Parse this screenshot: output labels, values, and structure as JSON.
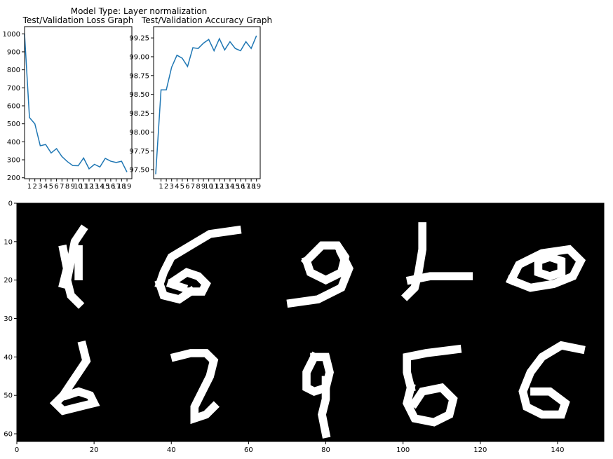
{
  "suptitle": "Model Type: Layer normalization",
  "chart_data": [
    {
      "type": "line",
      "title": "Test/Validation Loss Graph",
      "xlabel": "",
      "ylabel": "",
      "x": [
        1,
        2,
        3,
        4,
        5,
        6,
        7,
        8,
        9,
        10,
        11,
        12,
        13,
        14,
        15,
        16,
        17,
        18,
        19
      ],
      "xlim": [
        0.1,
        19.9
      ],
      "ylim": [
        195,
        1040
      ],
      "yticks": [
        200,
        300,
        400,
        500,
        600,
        700,
        800,
        900,
        1000
      ],
      "series": [
        {
          "color": "#1f77b4",
          "x": [
            0.1,
            1,
            2,
            3,
            4,
            5,
            6,
            7,
            8,
            9,
            10,
            11,
            12,
            13,
            14,
            15,
            16,
            17,
            18,
            19
          ],
          "values": [
            1000,
            535,
            500,
            378,
            385,
            338,
            362,
            318,
            290,
            268,
            267,
            310,
            250,
            275,
            260,
            308,
            292,
            285,
            292,
            232
          ]
        }
      ]
    },
    {
      "type": "line",
      "title": "Test/Validation Accuracy Graph",
      "xlabel": "",
      "ylabel": "",
      "x": [
        1,
        2,
        3,
        4,
        5,
        6,
        7,
        8,
        9,
        10,
        11,
        12,
        13,
        14,
        15,
        16,
        17,
        18,
        19
      ],
      "xlim": [
        -0.4,
        19.7
      ],
      "ylim": [
        97.38,
        99.4
      ],
      "yticks": [
        97.5,
        97.75,
        98.0,
        98.25,
        98.5,
        98.75,
        99.0,
        99.25
      ],
      "ytick_labels": [
        "97.50",
        "97.75",
        "98.00",
        "98.25",
        "98.50",
        "98.75",
        "99.00",
        "99.25"
      ],
      "series": [
        {
          "color": "#1f77b4",
          "x": [
            0,
            1,
            2,
            3,
            4,
            5,
            6,
            7,
            8,
            9,
            10,
            11,
            12,
            13,
            14,
            15,
            16,
            17,
            18,
            19
          ],
          "values": [
            97.44,
            98.56,
            98.56,
            98.86,
            99.02,
            98.98,
            98.87,
            99.12,
            99.11,
            99.18,
            99.23,
            99.08,
            99.24,
            99.09,
            99.2,
            99.11,
            99.08,
            99.2,
            99.11,
            99.28
          ]
        }
      ]
    },
    {
      "type": "heatmap",
      "title": "",
      "colormap": "gray",
      "xlim": [
        0,
        152
      ],
      "ylim": [
        62,
        0
      ],
      "xticks": [
        0,
        20,
        40,
        60,
        80,
        100,
        120,
        140
      ],
      "yticks": [
        0,
        10,
        20,
        30,
        40,
        50,
        60
      ],
      "grid_rows": 2,
      "grid_cols": 5,
      "digits": [
        {
          "row": 0,
          "col": 0,
          "strokes": [
            [
              [
                17,
                7
              ],
              [
                15,
                10
              ],
              [
                14,
                15
              ],
              [
                13,
                20
              ],
              [
                14,
                24
              ],
              [
                16,
                26
              ]
            ],
            [
              [
                12,
                12
              ],
              [
                13,
                17
              ],
              [
                12,
                21
              ]
            ],
            [
              [
                16,
                12
              ],
              [
                16,
                19
              ]
            ]
          ]
        },
        {
          "row": 0,
          "col": 1,
          "strokes": [
            [
              [
                57,
                7
              ],
              [
                50,
                8
              ],
              [
                45,
                11
              ],
              [
                40,
                14
              ],
              [
                38,
                18
              ],
              [
                37,
                21
              ]
            ],
            [
              [
                37,
                21
              ],
              [
                38,
                24
              ],
              [
                42,
                25
              ],
              [
                45,
                23
              ]
            ],
            [
              [
                41,
                20
              ],
              [
                44,
                18
              ],
              [
                47,
                19
              ],
              [
                49,
                21
              ],
              [
                48,
                23
              ],
              [
                45,
                23
              ]
            ],
            [
              [
                40,
                21
              ],
              [
                43,
                22
              ]
            ]
          ]
        },
        {
          "row": 0,
          "col": 2,
          "strokes": [
            [
              [
                75,
                15
              ],
              [
                79,
                11
              ],
              [
                83,
                11
              ],
              [
                85,
                14
              ],
              [
                84,
                18
              ],
              [
                80,
                20
              ],
              [
                76,
                18
              ],
              [
                75,
                15
              ]
            ],
            [
              [
                84,
                13
              ],
              [
                86,
                17
              ],
              [
                84,
                22
              ],
              [
                78,
                25
              ],
              [
                71,
                26
              ]
            ]
          ]
        },
        {
          "row": 0,
          "col": 3,
          "strokes": [
            [
              [
                105,
                6
              ],
              [
                105,
                12
              ],
              [
                104,
                18
              ],
              [
                103,
                22
              ],
              [
                101,
                24
              ]
            ],
            [
              [
                102,
                20
              ],
              [
                107,
                19
              ],
              [
                112,
                19
              ],
              [
                117,
                19
              ]
            ]
          ]
        },
        {
          "row": 0,
          "col": 4,
          "strokes": [
            [
              [
                128,
                20
              ],
              [
                130,
                16
              ],
              [
                136,
                13
              ],
              [
                143,
                12
              ],
              [
                146,
                15
              ],
              [
                144,
                19
              ],
              [
                139,
                21
              ],
              [
                133,
                22
              ],
              [
                128,
                20
              ]
            ],
            [
              [
                135,
                15
              ],
              [
                138,
                14
              ],
              [
                141,
                15
              ],
              [
                141,
                18
              ],
              [
                138,
                19
              ],
              [
                135,
                18
              ],
              [
                135,
                15
              ]
            ]
          ]
        },
        {
          "row": 1,
          "col": 0,
          "strokes": [
            [
              [
                17,
                37
              ],
              [
                18,
                41
              ],
              [
                16,
                44
              ],
              [
                14,
                47
              ],
              [
                12,
                50
              ],
              [
                10,
                52
              ],
              [
                12,
                54
              ],
              [
                16,
                53
              ],
              [
                20,
                52
              ],
              [
                19,
                50
              ],
              [
                16,
                49
              ],
              [
                13,
                50
              ]
            ]
          ]
        },
        {
          "row": 1,
          "col": 1,
          "strokes": [
            [
              [
                41,
                40
              ],
              [
                45,
                39
              ],
              [
                49,
                39
              ],
              [
                51,
                41
              ],
              [
                50,
                45
              ],
              [
                48,
                49
              ],
              [
                46,
                53
              ],
              [
                46,
                56
              ],
              [
                49,
                55
              ],
              [
                51,
                53
              ]
            ]
          ]
        },
        {
          "row": 1,
          "col": 2,
          "strokes": [
            [
              [
                77,
                40
              ],
              [
                75,
                44
              ],
              [
                75,
                48
              ],
              [
                77,
                49
              ],
              [
                80,
                48
              ],
              [
                81,
                44
              ],
              [
                80,
                40
              ],
              [
                77,
                40
              ]
            ],
            [
              [
                80,
                46
              ],
              [
                80,
                51
              ],
              [
                79,
                55
              ],
              [
                80,
                60
              ]
            ]
          ]
        },
        {
          "row": 1,
          "col": 3,
          "strokes": [
            [
              [
                114,
                38
              ],
              [
                106,
                39
              ],
              [
                101,
                40
              ],
              [
                101,
                44
              ],
              [
                102,
                48
              ]
            ],
            [
              [
                102,
                48
              ],
              [
                101,
                52
              ],
              [
                103,
                56
              ],
              [
                108,
                57
              ],
              [
                112,
                55
              ],
              [
                113,
                51
              ],
              [
                110,
                48
              ],
              [
                105,
                49
              ],
              [
                103,
                52
              ]
            ]
          ]
        },
        {
          "row": 1,
          "col": 4,
          "strokes": [
            [
              [
                146,
                38
              ],
              [
                141,
                37
              ],
              [
                136,
                40
              ],
              [
                133,
                44
              ],
              [
                131,
                49
              ],
              [
                132,
                53
              ],
              [
                136,
                55
              ],
              [
                141,
                55
              ],
              [
                142,
                52
              ],
              [
                138,
                49
              ],
              [
                134,
                49
              ]
            ]
          ]
        }
      ]
    }
  ]
}
